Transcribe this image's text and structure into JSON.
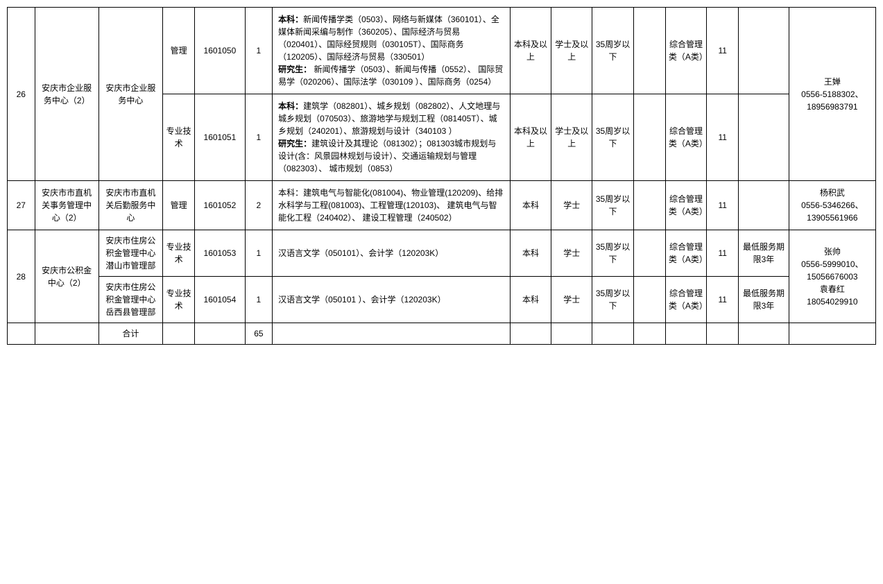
{
  "rows": [
    {
      "num": "26",
      "unit": "安庆市企业服务中心（2）",
      "dept": "安庆市企业服务中心",
      "positions": [
        {
          "type": "管理",
          "code": "1601050",
          "count": "1",
          "major_bk_label": "本科：",
          "major_bk": "新闻传播学类（0503）、网络与新媒体（360101）、全媒体新闻采编与制作（360205）、国际经济与贸易（020401）、国际经贸规则（030105T）、国际商务（120205）、国际经济与贸易（330501）",
          "major_yjs_label": "研究生：",
          "major_yjs": " 新闻传播学（0503）、新闻与传播（0552）、 国际贸易学（020206）、国际法学（030109 ）、国际商务（0254）",
          "edu": "本科及以上",
          "degree": "学士及以上",
          "age": "35周岁以下",
          "exam": "综合管理类（A类）",
          "other": "11",
          "note": ""
        },
        {
          "type": "专业技术",
          "code": "1601051",
          "count": "1",
          "major_bk_label": "本科：",
          "major_bk": "建筑学（082801）、城乡规划（082802）、人文地理与城乡规划（070503）、旅游地学与规划工程（081405T）、城乡规划（240201）、旅游规划与设计（340103 ）",
          "major_yjs_label": "研究生：",
          "major_yjs": "建筑设计及其理论（081302）；081303城市规划与设计(含：风景园林规划与设计）、交通运输规划与管理（082303）、 城市规划（0853）",
          "edu": "本科及以上",
          "degree": "学士及以上",
          "age": "35周岁以下",
          "exam": "综合管理类（A类）",
          "other": "11",
          "note": ""
        }
      ],
      "contact": "王婵\n0556-5188302、18956983791"
    },
    {
      "num": "27",
      "unit": "安庆市市直机关事务管理中心（2）",
      "dept": "安庆市市直机关后勤服务中心",
      "positions": [
        {
          "type": "管理",
          "code": "1601052",
          "count": "2",
          "major_plain": "本科：建筑电气与智能化(081004)、物业管理(120209)、给排水科学与工程(081003)、工程管理(120103)、 建筑电气与智能化工程（240402）、 建设工程管理（240502）",
          "edu": "本科",
          "degree": "学士",
          "age": "35周岁以下",
          "exam": "综合管理类（A类）",
          "other": "11",
          "note": ""
        }
      ],
      "contact": "杨积武\n0556-5346266、13905561966"
    },
    {
      "num": "28",
      "unit": "安庆市公积金中心（2）",
      "depts": [
        {
          "dept": "安庆市住房公积金管理中心潜山市管理部",
          "type": "专业技术",
          "code": "1601053",
          "count": "1",
          "major_plain": "汉语言文学（050101）、会计学（120203K）",
          "edu": "本科",
          "degree": "学士",
          "age": "35周岁以下",
          "exam": "综合管理类（A类）",
          "other": "11",
          "note": "最低服务期限3年"
        },
        {
          "dept": "安庆市住房公积金管理中心岳西县管理部",
          "type": "专业技术",
          "code": "1601054",
          "count": "1",
          "major_plain": "汉语言文学（050101 ）、会计学（120203K）",
          "edu": "本科",
          "degree": "学士",
          "age": "35周岁以下",
          "exam": "综合管理类（A类）",
          "other": "11",
          "note": "最低服务期限3年"
        }
      ],
      "contact": "张帅\n0556-5999010、15056676003\n袁春红\n18054029910"
    }
  ],
  "total_label": "合计",
  "total_count": "65"
}
